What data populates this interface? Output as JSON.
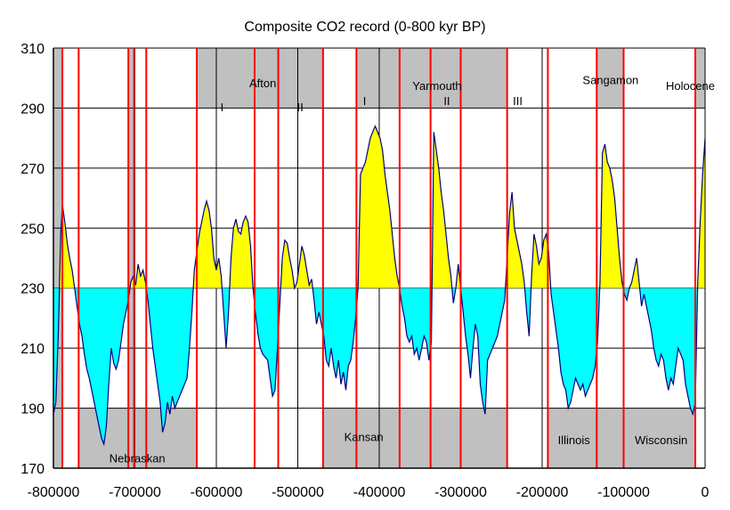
{
  "chart_data": {
    "type": "area",
    "title": "Composite CO2 record (0-800 kyr BP)",
    "xlabel": "",
    "ylabel": "",
    "xlim": [
      -800000,
      0
    ],
    "ylim": [
      170,
      310
    ],
    "x_ticks": [
      -800000,
      -700000,
      -600000,
      -500000,
      -400000,
      -300000,
      -200000,
      -100000,
      0
    ],
    "y_ticks": [
      170,
      190,
      210,
      230,
      250,
      270,
      290,
      310
    ],
    "grid": true,
    "baseline": 230,
    "colors": {
      "above_baseline_fill": "#ffff00",
      "below_baseline_fill": "#00ffff",
      "series_line": "#000080",
      "shade": "#c0c0c0",
      "boundary_line": "#ff0000",
      "grid": "#000000"
    },
    "series": [
      {
        "values": [
          [
            -800000,
            188
          ],
          [
            -797000,
            192
          ],
          [
            -794000,
            215
          ],
          [
            -791000,
            248
          ],
          [
            -789000,
            258
          ],
          [
            -786000,
            252
          ],
          [
            -783000,
            245
          ],
          [
            -780000,
            240
          ],
          [
            -777000,
            236
          ],
          [
            -774000,
            230
          ],
          [
            -771000,
            224
          ],
          [
            -768000,
            218
          ],
          [
            -765000,
            214
          ],
          [
            -762000,
            208
          ],
          [
            -759000,
            203
          ],
          [
            -756000,
            200
          ],
          [
            -753000,
            196
          ],
          [
            -750000,
            192
          ],
          [
            -747000,
            188
          ],
          [
            -744000,
            184
          ],
          [
            -741000,
            180
          ],
          [
            -738000,
            178
          ],
          [
            -735000,
            184
          ],
          [
            -732000,
            198
          ],
          [
            -729000,
            210
          ],
          [
            -726000,
            205
          ],
          [
            -723000,
            203
          ],
          [
            -720000,
            206
          ],
          [
            -717000,
            212
          ],
          [
            -714000,
            218
          ],
          [
            -711000,
            222
          ],
          [
            -708000,
            226
          ],
          [
            -705000,
            232
          ],
          [
            -702000,
            234
          ],
          [
            -699000,
            231
          ],
          [
            -696000,
            238
          ],
          [
            -693000,
            234
          ],
          [
            -690000,
            236
          ],
          [
            -687000,
            232
          ],
          [
            -684000,
            226
          ],
          [
            -681000,
            218
          ],
          [
            -678000,
            210
          ],
          [
            -675000,
            204
          ],
          [
            -672000,
            198
          ],
          [
            -669000,
            192
          ],
          [
            -666000,
            182
          ],
          [
            -663000,
            185
          ],
          [
            -660000,
            192
          ],
          [
            -657000,
            188
          ],
          [
            -654000,
            194
          ],
          [
            -651000,
            190
          ],
          [
            -648000,
            192
          ],
          [
            -645000,
            194
          ],
          [
            -642000,
            196
          ],
          [
            -639000,
            198
          ],
          [
            -636000,
            200
          ],
          [
            -633000,
            210
          ],
          [
            -630000,
            222
          ],
          [
            -627000,
            236
          ],
          [
            -624000,
            242
          ],
          [
            -621000,
            248
          ],
          [
            -618000,
            252
          ],
          [
            -615000,
            256
          ],
          [
            -612000,
            259
          ],
          [
            -609000,
            256
          ],
          [
            -606000,
            250
          ],
          [
            -603000,
            240
          ],
          [
            -600000,
            236
          ],
          [
            -597000,
            240
          ],
          [
            -594000,
            234
          ],
          [
            -591000,
            222
          ],
          [
            -588000,
            210
          ],
          [
            -585000,
            222
          ],
          [
            -582000,
            240
          ],
          [
            -579000,
            250
          ],
          [
            -576000,
            253
          ],
          [
            -573000,
            249
          ],
          [
            -570000,
            248
          ],
          [
            -567000,
            252
          ],
          [
            -564000,
            254
          ],
          [
            -561000,
            252
          ],
          [
            -558000,
            244
          ],
          [
            -555000,
            230
          ],
          [
            -552000,
            222
          ],
          [
            -549000,
            215
          ],
          [
            -546000,
            210
          ],
          [
            -543000,
            208
          ],
          [
            -540000,
            207
          ],
          [
            -537000,
            206
          ],
          [
            -534000,
            200
          ],
          [
            -531000,
            194
          ],
          [
            -528000,
            196
          ],
          [
            -525000,
            210
          ],
          [
            -522000,
            225
          ],
          [
            -519000,
            240
          ],
          [
            -516000,
            246
          ],
          [
            -513000,
            245
          ],
          [
            -510000,
            240
          ],
          [
            -507000,
            236
          ],
          [
            -504000,
            230
          ],
          [
            -501000,
            232
          ],
          [
            -498000,
            238
          ],
          [
            -495000,
            244
          ],
          [
            -492000,
            241
          ],
          [
            -489000,
            236
          ],
          [
            -486000,
            231
          ],
          [
            -483000,
            233
          ],
          [
            -480000,
            226
          ],
          [
            -477000,
            218
          ],
          [
            -474000,
            222
          ],
          [
            -471000,
            218
          ],
          [
            -468000,
            214
          ],
          [
            -465000,
            206
          ],
          [
            -462000,
            204
          ],
          [
            -459000,
            210
          ],
          [
            -456000,
            204
          ],
          [
            -453000,
            200
          ],
          [
            -450000,
            206
          ],
          [
            -447000,
            198
          ],
          [
            -444000,
            202
          ],
          [
            -441000,
            196
          ],
          [
            -438000,
            204
          ],
          [
            -435000,
            206
          ],
          [
            -432000,
            212
          ],
          [
            -429000,
            220
          ],
          [
            -426000,
            230
          ],
          [
            -423000,
            268
          ],
          [
            -420000,
            270
          ],
          [
            -417000,
            272
          ],
          [
            -414000,
            276
          ],
          [
            -411000,
            280
          ],
          [
            -408000,
            282
          ],
          [
            -405000,
            284
          ],
          [
            -402000,
            282
          ],
          [
            -399000,
            280
          ],
          [
            -396000,
            276
          ],
          [
            -393000,
            268
          ],
          [
            -390000,
            262
          ],
          [
            -387000,
            256
          ],
          [
            -384000,
            248
          ],
          [
            -381000,
            240
          ],
          [
            -378000,
            234
          ],
          [
            -375000,
            230
          ],
          [
            -372000,
            224
          ],
          [
            -369000,
            220
          ],
          [
            -366000,
            214
          ],
          [
            -363000,
            212
          ],
          [
            -360000,
            214
          ],
          [
            -357000,
            208
          ],
          [
            -354000,
            210
          ],
          [
            -351000,
            206
          ],
          [
            -348000,
            210
          ],
          [
            -345000,
            214
          ],
          [
            -342000,
            212
          ],
          [
            -339000,
            206
          ],
          [
            -336000,
            212
          ],
          [
            -333000,
            282
          ],
          [
            -330000,
            276
          ],
          [
            -327000,
            270
          ],
          [
            -324000,
            262
          ],
          [
            -321000,
            256
          ],
          [
            -318000,
            248
          ],
          [
            -315000,
            240
          ],
          [
            -312000,
            234
          ],
          [
            -309000,
            225
          ],
          [
            -306000,
            230
          ],
          [
            -303000,
            238
          ],
          [
            -300000,
            230
          ],
          [
            -297000,
            222
          ],
          [
            -294000,
            214
          ],
          [
            -291000,
            208
          ],
          [
            -288000,
            200
          ],
          [
            -285000,
            210
          ],
          [
            -282000,
            218
          ],
          [
            -279000,
            214
          ],
          [
            -276000,
            198
          ],
          [
            -273000,
            192
          ],
          [
            -270000,
            188
          ],
          [
            -267000,
            206
          ],
          [
            -264000,
            208
          ],
          [
            -261000,
            210
          ],
          [
            -258000,
            212
          ],
          [
            -255000,
            214
          ],
          [
            -252000,
            218
          ],
          [
            -249000,
            222
          ],
          [
            -246000,
            226
          ],
          [
            -243000,
            240
          ],
          [
            -240000,
            255
          ],
          [
            -237000,
            262
          ],
          [
            -234000,
            250
          ],
          [
            -231000,
            246
          ],
          [
            -228000,
            242
          ],
          [
            -225000,
            238
          ],
          [
            -222000,
            232
          ],
          [
            -219000,
            222
          ],
          [
            -216000,
            214
          ],
          [
            -213000,
            234
          ],
          [
            -210000,
            248
          ],
          [
            -207000,
            244
          ],
          [
            -204000,
            238
          ],
          [
            -201000,
            240
          ],
          [
            -198000,
            246
          ],
          [
            -195000,
            248
          ],
          [
            -192000,
            242
          ],
          [
            -189000,
            228
          ],
          [
            -186000,
            222
          ],
          [
            -183000,
            216
          ],
          [
            -180000,
            210
          ],
          [
            -177000,
            202
          ],
          [
            -174000,
            198
          ],
          [
            -171000,
            196
          ],
          [
            -168000,
            190
          ],
          [
            -165000,
            192
          ],
          [
            -162000,
            196
          ],
          [
            -159000,
            200
          ],
          [
            -156000,
            198
          ],
          [
            -153000,
            196
          ],
          [
            -150000,
            198
          ],
          [
            -147000,
            194
          ],
          [
            -144000,
            196
          ],
          [
            -141000,
            198
          ],
          [
            -138000,
            200
          ],
          [
            -135000,
            204
          ],
          [
            -132000,
            212
          ],
          [
            -129000,
            232
          ],
          [
            -126000,
            275
          ],
          [
            -123000,
            278
          ],
          [
            -120000,
            272
          ],
          [
            -117000,
            270
          ],
          [
            -114000,
            266
          ],
          [
            -111000,
            260
          ],
          [
            -108000,
            250
          ],
          [
            -105000,
            240
          ],
          [
            -102000,
            232
          ],
          [
            -99000,
            228
          ],
          [
            -96000,
            226
          ],
          [
            -93000,
            230
          ],
          [
            -90000,
            232
          ],
          [
            -87000,
            236
          ],
          [
            -84000,
            240
          ],
          [
            -81000,
            232
          ],
          [
            -78000,
            224
          ],
          [
            -75000,
            228
          ],
          [
            -72000,
            224
          ],
          [
            -69000,
            220
          ],
          [
            -66000,
            216
          ],
          [
            -63000,
            210
          ],
          [
            -60000,
            206
          ],
          [
            -57000,
            204
          ],
          [
            -54000,
            208
          ],
          [
            -51000,
            206
          ],
          [
            -48000,
            200
          ],
          [
            -45000,
            196
          ],
          [
            -42000,
            200
          ],
          [
            -39000,
            198
          ],
          [
            -36000,
            204
          ],
          [
            -33000,
            210
          ],
          [
            -30000,
            208
          ],
          [
            -27000,
            206
          ],
          [
            -24000,
            198
          ],
          [
            -21000,
            194
          ],
          [
            -18000,
            190
          ],
          [
            -15000,
            188
          ],
          [
            -12000,
            192
          ],
          [
            -9000,
            232
          ],
          [
            -6000,
            252
          ],
          [
            -3000,
            268
          ],
          [
            0,
            280
          ]
        ]
      }
    ],
    "boundaries": [
      -789000,
      -769000,
      -708000,
      -701000,
      -686000,
      -624000,
      -553000,
      -524000,
      -469000,
      -428000,
      -375000,
      -337000,
      -300000,
      -243000,
      -193000,
      -133000,
      -100000,
      -12000
    ],
    "shaded_ranges": [
      {
        "x0": -800000,
        "x1": -789000,
        "y0": 170,
        "y1": 310
      },
      {
        "x0": -769000,
        "x1": -708000,
        "y0": 170,
        "y1": 190
      },
      {
        "x0": -708000,
        "x1": -701000,
        "y0": 170,
        "y1": 310
      },
      {
        "x0": -701000,
        "x1": -686000,
        "y0": 170,
        "y1": 190
      },
      {
        "x0": -686000,
        "x1": -624000,
        "y0": 170,
        "y1": 190
      },
      {
        "x0": -624000,
        "x1": -469000,
        "y0": 290,
        "y1": 310
      },
      {
        "x0": -428000,
        "x1": -243000,
        "y0": 290,
        "y1": 310
      },
      {
        "x0": -469000,
        "x1": -243000,
        "y0": 170,
        "y1": 190
      },
      {
        "x0": -133000,
        "x1": -100000,
        "y0": 290,
        "y1": 310
      },
      {
        "x0": -12000,
        "x1": 0,
        "y0": 290,
        "y1": 310
      },
      {
        "x0": -193000,
        "x1": -12000,
        "y0": 170,
        "y1": 190
      }
    ],
    "annotations": [
      {
        "text": "Afton",
        "x": -543000,
        "y": 297
      },
      {
        "text": "I",
        "x": -593000,
        "y": 289
      },
      {
        "text": "II",
        "x": -497000,
        "y": 289
      },
      {
        "text": "Yarmouth",
        "x": -329000,
        "y": 296
      },
      {
        "text": "I",
        "x": -418000,
        "y": 291
      },
      {
        "text": "II",
        "x": -317000,
        "y": 291
      },
      {
        "text": "III",
        "x": -230000,
        "y": 291
      },
      {
        "text": "Sangamon",
        "x": -116000,
        "y": 298
      },
      {
        "text": "Holocene",
        "x": -18000,
        "y": 296
      },
      {
        "text": "Nebraskan",
        "x": -697000,
        "y": 172
      },
      {
        "text": "Kansan",
        "x": -419000,
        "y": 179
      },
      {
        "text": "Illinois",
        "x": -161000,
        "y": 178
      },
      {
        "text": "Wisconsin",
        "x": -54000,
        "y": 178
      }
    ]
  }
}
